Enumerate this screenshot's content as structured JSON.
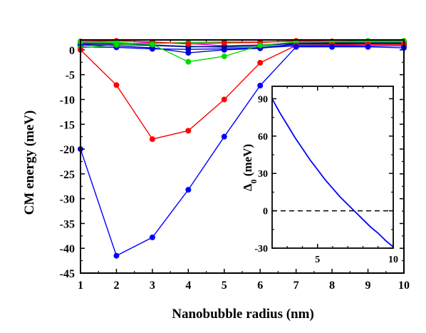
{
  "chart_data": [
    {
      "type": "line",
      "title": "",
      "xlabel": "Nanobubble radius (nm)",
      "ylabel": "CM energy (meV)",
      "xlim": [
        1,
        10
      ],
      "ylim": [
        -45,
        2
      ],
      "xticks": [
        1,
        2,
        3,
        4,
        5,
        6,
        7,
        8,
        9,
        10
      ],
      "yticks": [
        0,
        -5,
        -10,
        -15,
        -20,
        -25,
        -30,
        -35,
        -40,
        -45
      ],
      "series": [
        {
          "color": "#0000ff",
          "x": [
            1,
            2,
            3,
            4,
            5,
            6,
            7,
            8,
            9,
            10
          ],
          "y": [
            -20.0,
            -41.5,
            -37.8,
            -28.2,
            -17.5,
            -7.2,
            0.6,
            0.6,
            0.6,
            0.4
          ]
        },
        {
          "color": "#ff0000",
          "x": [
            1,
            2,
            3,
            4,
            5,
            6,
            7,
            8,
            9,
            10
          ],
          "y": [
            0.0,
            -7.1,
            -18.0,
            -16.3,
            -10.0,
            -2.6,
            0.9,
            1.0,
            1.1,
            1.1
          ]
        },
        {
          "color": "#00dd00",
          "x": [
            1,
            2,
            3,
            4,
            5,
            6,
            7,
            8,
            9,
            10
          ],
          "y": [
            1.6,
            1.5,
            1.1,
            -2.4,
            -1.3,
            0.9,
            1.6,
            1.6,
            1.6,
            1.6
          ]
        },
        {
          "color": "#ff0000",
          "x": [
            1,
            2,
            3,
            4,
            5,
            6,
            7,
            8,
            9,
            10
          ],
          "y": [
            1.7,
            1.8,
            1.6,
            1.2,
            1.4,
            1.5,
            1.8,
            1.7,
            1.6,
            1.6
          ]
        },
        {
          "color": "#00cc00",
          "x": [
            1,
            2,
            3,
            4,
            5,
            6,
            7,
            8,
            9,
            10
          ],
          "y": [
            0.4,
            1.0,
            1.3,
            1.5,
            1.6,
            1.6,
            1.7,
            1.7,
            1.8,
            1.8
          ]
        },
        {
          "color": "#0000cc",
          "x": [
            1,
            2,
            3,
            4,
            5,
            6,
            7,
            8,
            9,
            10
          ],
          "y": [
            1.0,
            0.8,
            0.4,
            -0.6,
            0.0,
            0.3,
            1.2,
            1.2,
            1.3,
            1.3
          ]
        },
        {
          "color": "#000080",
          "x": [
            1,
            2,
            3,
            4,
            5,
            6,
            7,
            8,
            9,
            10
          ],
          "y": [
            1.2,
            1.1,
            0.9,
            0.6,
            0.7,
            0.9,
            1.3,
            1.4,
            1.4,
            1.4
          ]
        },
        {
          "color": "#ff00ff",
          "x": [
            1,
            2,
            3,
            4,
            5,
            6,
            7,
            8,
            9,
            10
          ],
          "y": [
            1.4,
            1.2,
            1.5,
            1.3,
            0.8,
            1.0,
            1.4,
            1.5,
            1.5,
            1.5
          ]
        },
        {
          "color": "#008080",
          "x": [
            1,
            2,
            3,
            4,
            5,
            6,
            7,
            8,
            9,
            10
          ],
          "y": [
            1.5,
            1.3,
            1.0,
            0.7,
            0.5,
            0.6,
            1.0,
            1.0,
            1.1,
            1.1
          ]
        },
        {
          "color": "#0000ff",
          "x": [
            1,
            2,
            3,
            4,
            5,
            6,
            7,
            8,
            9,
            10
          ],
          "y": [
            0.6,
            0.5,
            0.2,
            0.1,
            0.2,
            0.4,
            0.8,
            0.8,
            0.8,
            0.8
          ]
        }
      ],
      "grid": false,
      "legend": false
    },
    {
      "type": "line",
      "title": "",
      "xlabel": "",
      "ylabel": "Δ0 (meV)",
      "ylabel_main": "Δ",
      "ylabel_sub": "0",
      "ylabel_unit": " (meV)",
      "xlim": [
        2,
        10
      ],
      "ylim": [
        -30,
        100
      ],
      "xticks": [
        5,
        10
      ],
      "yticks": [
        90,
        60,
        30,
        0,
        -30
      ],
      "series": [
        {
          "color": "#0000ff",
          "x": [
            2,
            2.5,
            3,
            3.5,
            4,
            4.5,
            5,
            5.5,
            6,
            6.5,
            7,
            7.5,
            8,
            8.5,
            9,
            9.5,
            10
          ],
          "y": [
            90,
            79,
            69,
            59,
            50,
            41,
            33,
            25,
            18,
            11,
            5,
            -1,
            -7,
            -13,
            -18,
            -24,
            -29
          ]
        }
      ],
      "reference_line": {
        "y": 0,
        "style": "dashed"
      },
      "grid": false,
      "legend": false
    }
  ]
}
